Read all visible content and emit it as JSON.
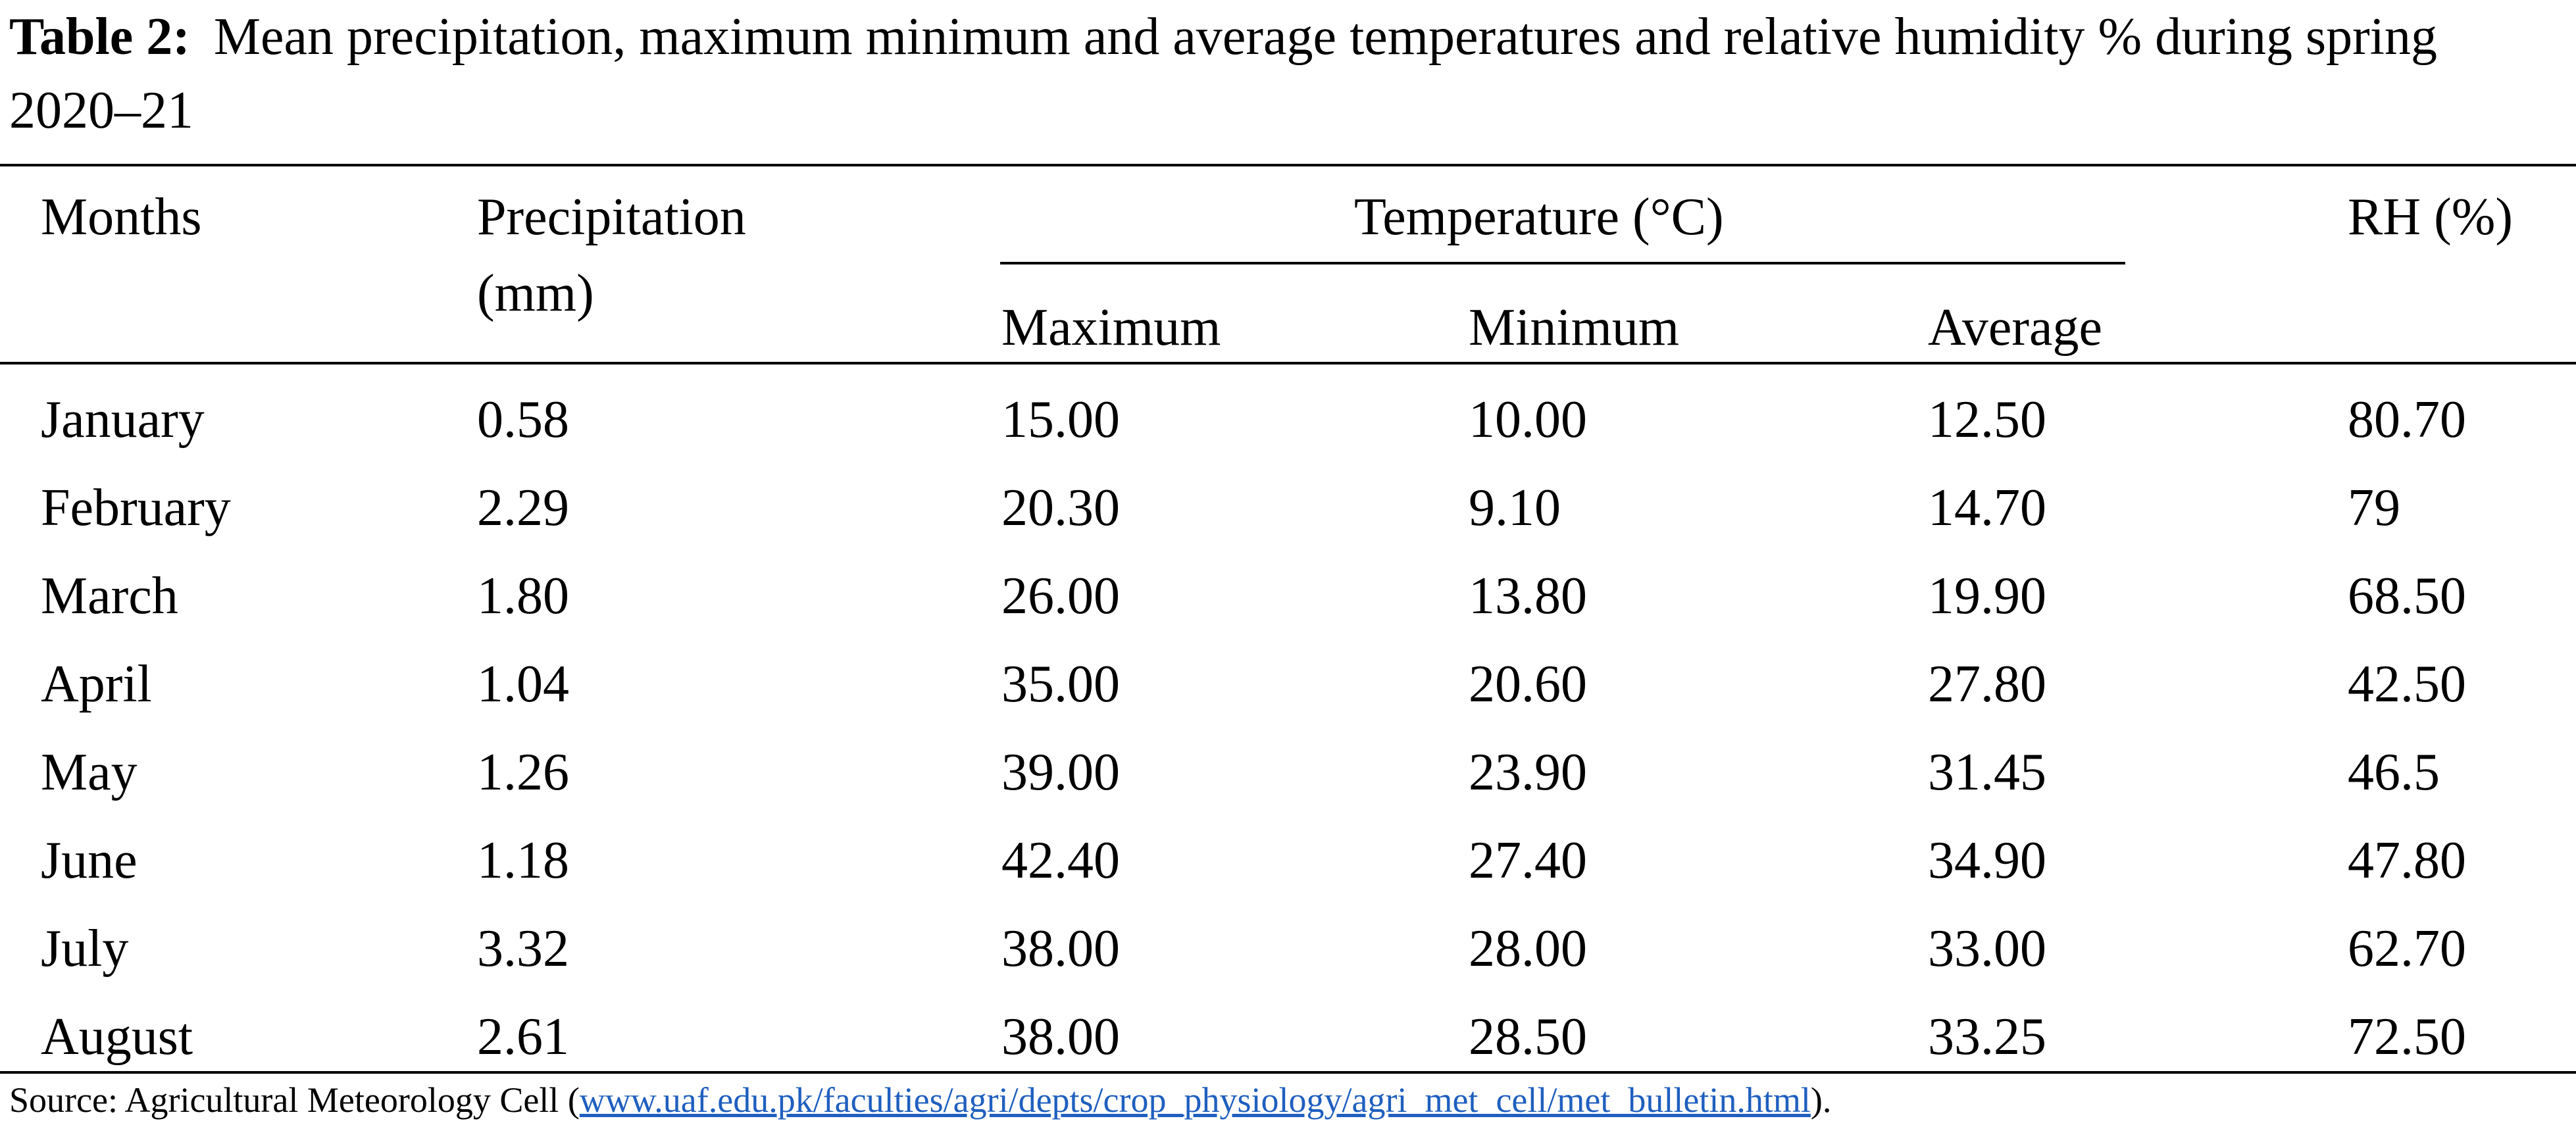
{
  "caption": {
    "label": "Table 2:",
    "text": "Mean precipitation, maximum minimum and average temperatures and relative humidity % during spring 2020–21"
  },
  "header": {
    "months": "Months",
    "precipitation_line1": "Precipitation",
    "precipitation_line2": "(mm)",
    "temperature": "Temperature (°C)",
    "maximum": "Maximum",
    "minimum": "Minimum",
    "average": "Average",
    "rh": "RH (%)"
  },
  "rows": [
    {
      "month": "January",
      "precip": "0.58",
      "max": "15.00",
      "min": "10.00",
      "avg": "12.50",
      "rh": "80.70"
    },
    {
      "month": "February",
      "precip": "2.29",
      "max": "20.30",
      "min": "9.10",
      "avg": "14.70",
      "rh": "79"
    },
    {
      "month": "March",
      "precip": "1.80",
      "max": "26.00",
      "min": "13.80",
      "avg": "19.90",
      "rh": "68.50"
    },
    {
      "month": "April",
      "precip": "1.04",
      "max": "35.00",
      "min": "20.60",
      "avg": "27.80",
      "rh": "42.50"
    },
    {
      "month": "May",
      "precip": "1.26",
      "max": "39.00",
      "min": "23.90",
      "avg": "31.45",
      "rh": "46.5"
    },
    {
      "month": "June",
      "precip": "1.18",
      "max": "42.40",
      "min": "27.40",
      "avg": "34.90",
      "rh": "47.80"
    },
    {
      "month": "July",
      "precip": "3.32",
      "max": "38.00",
      "min": "28.00",
      "avg": "33.00",
      "rh": "62.70"
    },
    {
      "month": "August",
      "precip": "2.61",
      "max": "38.00",
      "min": "28.50",
      "avg": "33.25",
      "rh": "72.50"
    }
  ],
  "source": {
    "prefix": "Source: Agricultural Meteorology Cell (",
    "link": "www.uaf.edu.pk/faculties/agri/depts/crop_physiology/agri_met_cell/met_bulletin.html",
    "suffix": ")."
  },
  "colors": {
    "text": "#000000",
    "link": "#1f5fbf",
    "background": "#ffffff"
  }
}
